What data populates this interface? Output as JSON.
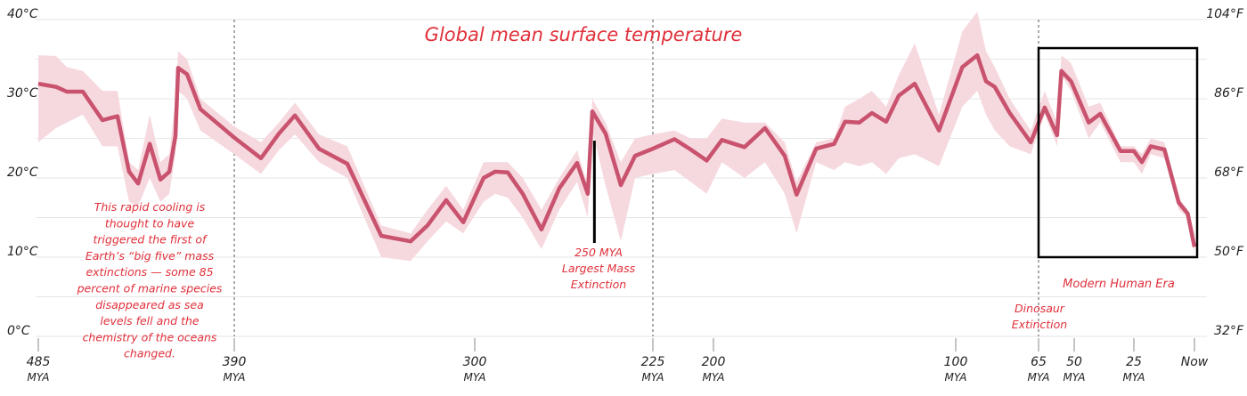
{
  "chart_data": {
    "type": "line",
    "title": "Global mean surface temperature",
    "x_unit": "MYA",
    "x_ticks": [
      {
        "value": 485,
        "label": "485",
        "sub": "MYA"
      },
      {
        "value": 390,
        "label": "390",
        "sub": "MYA"
      },
      {
        "value": 300,
        "label": "300",
        "sub": "MYA"
      },
      {
        "value": 225,
        "label": "225",
        "sub": "MYA"
      },
      {
        "value": 200,
        "label": "200",
        "sub": "MYA"
      },
      {
        "value": 100,
        "label": "100",
        "sub": "MYA"
      },
      {
        "value": 65,
        "label": "65",
        "sub": "MYA"
      },
      {
        "value": 50,
        "label": "50",
        "sub": "MYA"
      },
      {
        "value": 25,
        "label": "25",
        "sub": "MYA"
      },
      {
        "value": 0,
        "label": "Now",
        "sub": ""
      }
    ],
    "ylim": [
      0,
      40
    ],
    "y_ticks_left": [
      {
        "value": 0,
        "label": "0°C"
      },
      {
        "value": 10,
        "label": "10°C"
      },
      {
        "value": 20,
        "label": "20°C"
      },
      {
        "value": 30,
        "label": "30°C"
      },
      {
        "value": 40,
        "label": "40°C"
      }
    ],
    "y_ticks_right": [
      {
        "value": 0,
        "label": "32°F"
      },
      {
        "value": 10,
        "label": "50°F"
      },
      {
        "value": 20,
        "label": "68°F"
      },
      {
        "value": 30,
        "label": "86°F"
      },
      {
        "value": 40,
        "label": "104°F"
      }
    ],
    "grid": true,
    "grid_step": 5,
    "series": [
      {
        "x": [
          485,
          476.4,
          471.2,
          463.4,
          453.9,
          446.6,
          441,
          436.6,
          431,
          425.8,
          421.5,
          418.5,
          417.2,
          412.9,
          406.4,
          390,
          380,
          373.3,
          367.3,
          358.3,
          347.7,
          335,
          324,
          317.7,
          310.7,
          304.3,
          296.3,
          291.4,
          286.1,
          279.8,
          271.9,
          264.4,
          256.9,
          252.4,
          250.5,
          244.9,
          238.5,
          232.5,
          225,
          216.1,
          209.4,
          202.8,
          196.5,
          187.2,
          178.7,
          170.6,
          165.7,
          157.6,
          150.2,
          145.7,
          139.8,
          134.6,
          128.7,
          123.5,
          116.9,
          106.9,
          97.2,
          90.9,
          87.2,
          83.5,
          77.2,
          68.3,
          62.4,
          57.2,
          55.4,
          51.3,
          43.9,
          39.1,
          30.6,
          25,
          21.7,
          18,
          12.4,
          6.5,
          2.8,
          0
        ],
        "y": [
          31.9,
          31.5,
          30.9,
          30.9,
          27.3,
          27.8,
          20.8,
          19.3,
          24.3,
          19.8,
          20.8,
          25.3,
          33.9,
          33.1,
          28.7,
          25.1,
          22.5,
          25.6,
          27.9,
          23.7,
          21.8,
          12.7,
          12.0,
          14.0,
          17.2,
          14.4,
          20.0,
          20.8,
          20.7,
          18.0,
          13.5,
          18.7,
          21.9,
          18.0,
          28.4,
          25.6,
          19.1,
          22.8,
          23.7,
          24.9,
          23.6,
          22.2,
          24.8,
          23.9,
          26.3,
          22.8,
          17.9,
          23.7,
          24.3,
          27.1,
          27.0,
          28.2,
          27.1,
          30.4,
          31.9,
          26.0,
          34.0,
          35.5,
          32.2,
          31.5,
          28.2,
          24.5,
          28.9,
          25.4,
          33.5,
          32.2,
          27.0,
          28.1,
          23.4,
          23.4,
          22.0,
          24.0,
          23.6,
          16.9,
          15.5,
          11.3
        ],
        "band_high": [
          35.5,
          35.4,
          34,
          33.5,
          31,
          31,
          22,
          21,
          28,
          22,
          23,
          30,
          36,
          35,
          30,
          26.5,
          24.5,
          27,
          29.5,
          25.5,
          24,
          14,
          13,
          16,
          19,
          16,
          22,
          22,
          22,
          20,
          16,
          20,
          23.5,
          19,
          30,
          27,
          22,
          25,
          25.5,
          26,
          25,
          25,
          27.5,
          27,
          27,
          24.5,
          19.5,
          24.5,
          25,
          29,
          30,
          31,
          29,
          33,
          37,
          28,
          38.5,
          41,
          36,
          34,
          30,
          26,
          31,
          27,
          35.5,
          34.5,
          29,
          29.5,
          24,
          24,
          23,
          25,
          24.5,
          17.5,
          16,
          13
        ],
        "band_low": [
          24.5,
          26.3,
          27,
          28,
          24,
          24,
          17,
          16.5,
          20,
          17,
          18,
          23,
          31,
          30,
          26,
          23,
          20.5,
          23.5,
          25.5,
          22,
          20,
          10,
          9.5,
          12,
          14.5,
          13,
          17,
          18,
          17.5,
          15,
          11,
          16,
          19.5,
          15,
          26,
          19,
          12,
          20,
          20.5,
          21,
          19.5,
          18,
          22,
          20,
          22,
          18,
          13,
          22,
          21,
          22,
          21.5,
          22,
          20.5,
          22.5,
          23,
          21.5,
          29,
          31,
          28,
          26,
          24,
          23,
          28,
          24,
          33,
          31,
          25,
          27,
          22,
          22,
          20.5,
          23,
          22.5,
          16,
          15,
          10.5
        ],
        "color": "#c9536e",
        "band_color": "#f6d9df"
      }
    ],
    "annotations": {
      "cooling_note": [
        "This rapid cooling is",
        "thought to have",
        "triggered the first of",
        "Earth’s “big five” mass",
        "extinctions — some 85",
        "percent of marine species",
        "disappeared as sea",
        "levels fell and the",
        "chemistry of the oceans",
        "changed."
      ],
      "permian_marker": {
        "x": 250,
        "y_from": 24.7,
        "y_to": 11.8
      },
      "permian_label": [
        "250 MYA",
        "Largest Mass",
        "Extinction"
      ],
      "dinosaur_label": [
        "Dinosaur",
        "Extinction"
      ],
      "modern_label": "Modern Human Era",
      "modern_box": {
        "x_from": 65,
        "x_to": 0,
        "y_from": 10,
        "y_to": 36.4
      },
      "dashed_lines_at": [
        390,
        225,
        65
      ]
    },
    "text_color": "#e0303a",
    "axis_text_color": "#222222"
  }
}
